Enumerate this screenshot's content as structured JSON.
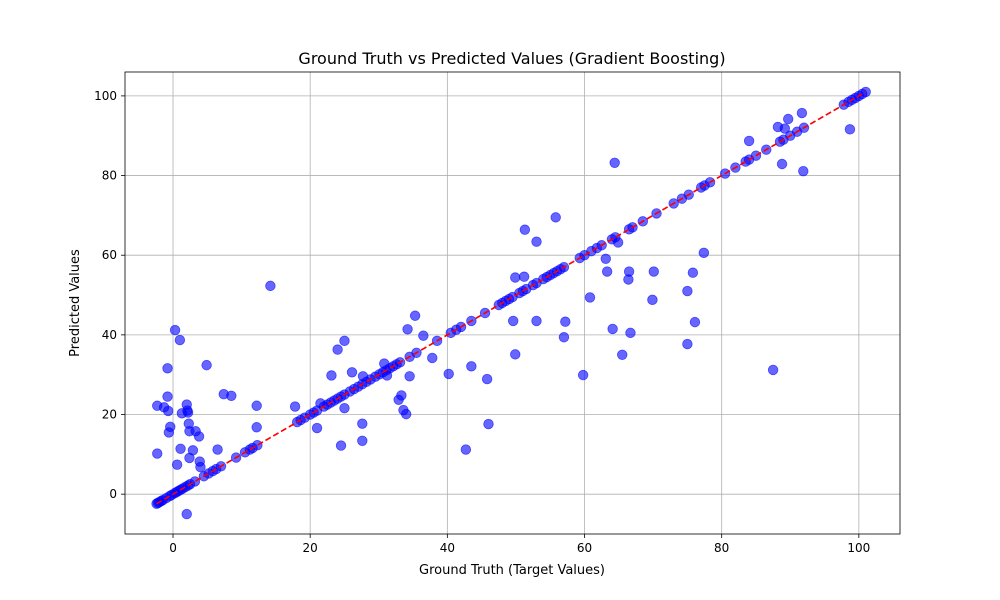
{
  "chart_data": {
    "type": "scatter",
    "title": "Ground Truth vs Predicted Values (Gradient Boosting)",
    "xlabel": "Ground Truth (Target Values)",
    "ylabel": "Predicted Values",
    "xlim": [
      -7,
      106
    ],
    "ylim": [
      -10,
      106
    ],
    "xticks": [
      0,
      20,
      40,
      60,
      80,
      100
    ],
    "yticks": [
      0,
      20,
      40,
      60,
      80,
      100
    ],
    "grid": true,
    "point_color": "#0000ff",
    "line_color": "#ff0000",
    "reference_line": {
      "style": "dashed",
      "x": [
        -2.4,
        101
      ],
      "y": [
        -2.4,
        101
      ]
    },
    "points": [
      [
        -2.4,
        -2.4
      ],
      [
        -2.2,
        -2.2
      ],
      [
        -2,
        -2
      ],
      [
        -1.7,
        -1.7
      ],
      [
        -1.5,
        -1.5
      ],
      [
        -1,
        -1
      ],
      [
        -0.5,
        -0.5
      ],
      [
        -0.2,
        -0.2
      ],
      [
        0.2,
        0.2
      ],
      [
        0.5,
        0.5
      ],
      [
        0.8,
        0.8
      ],
      [
        1.1,
        1.1
      ],
      [
        1.4,
        1.4
      ],
      [
        1.8,
        1.8
      ],
      [
        2.2,
        2.2
      ],
      [
        2.5,
        2.5
      ],
      [
        3.2,
        3.2
      ],
      [
        4.5,
        4.5
      ],
      [
        5.2,
        5.2
      ],
      [
        5.8,
        5.8
      ],
      [
        6.3,
        6.3
      ],
      [
        7,
        7
      ],
      [
        9.2,
        9.2
      ],
      [
        10.5,
        10.5
      ],
      [
        11.2,
        11.2
      ],
      [
        11.6,
        11.6
      ],
      [
        12.3,
        12.3
      ],
      [
        18.1,
        18.1
      ],
      [
        18.6,
        18.6
      ],
      [
        19.2,
        19.2
      ],
      [
        20,
        20
      ],
      [
        20.5,
        20.5
      ],
      [
        21,
        21
      ],
      [
        22,
        22
      ],
      [
        22.5,
        22.5
      ],
      [
        23,
        23
      ],
      [
        23.5,
        23.5
      ],
      [
        24,
        24
      ],
      [
        24.5,
        24.5
      ],
      [
        25,
        25
      ],
      [
        25.8,
        25.8
      ],
      [
        26.4,
        26.4
      ],
      [
        27,
        27
      ],
      [
        27.6,
        27.6
      ],
      [
        28.2,
        28.2
      ],
      [
        28.8,
        28.8
      ],
      [
        29.5,
        29.5
      ],
      [
        30.1,
        30.1
      ],
      [
        30.6,
        30.6
      ],
      [
        31.1,
        31.1
      ],
      [
        31.6,
        31.6
      ],
      [
        32.1,
        32.1
      ],
      [
        32.6,
        32.6
      ],
      [
        33.1,
        33.1
      ],
      [
        34.5,
        34.5
      ],
      [
        35.5,
        35.5
      ],
      [
        38.5,
        38.5
      ],
      [
        40.5,
        40.5
      ],
      [
        41.3,
        41.3
      ],
      [
        42,
        42
      ],
      [
        43.5,
        43.5
      ],
      [
        45.5,
        45.5
      ],
      [
        47.5,
        47.5
      ],
      [
        48,
        48
      ],
      [
        48.5,
        48.5
      ],
      [
        49,
        49
      ],
      [
        49.5,
        49.5
      ],
      [
        50.5,
        50.5
      ],
      [
        51,
        51
      ],
      [
        51.5,
        51.5
      ],
      [
        52.5,
        52.5
      ],
      [
        53,
        53
      ],
      [
        54,
        54
      ],
      [
        54.5,
        54.5
      ],
      [
        55,
        55
      ],
      [
        55.5,
        55.5
      ],
      [
        56,
        56
      ],
      [
        56.5,
        56.5
      ],
      [
        57,
        57
      ],
      [
        59.3,
        59.3
      ],
      [
        60,
        60
      ],
      [
        61,
        61
      ],
      [
        61.8,
        61.8
      ],
      [
        62.5,
        62.5
      ],
      [
        64,
        64
      ],
      [
        64.5,
        64.5
      ],
      [
        66.5,
        66.5
      ],
      [
        67,
        67
      ],
      [
        68.5,
        68.5
      ],
      [
        70.5,
        70.5
      ],
      [
        73,
        73
      ],
      [
        74.2,
        74.2
      ],
      [
        75.2,
        75.2
      ],
      [
        77,
        77
      ],
      [
        77.5,
        77.5
      ],
      [
        78.3,
        78.3
      ],
      [
        80.5,
        80.5
      ],
      [
        82,
        82
      ],
      [
        83.5,
        83.5
      ],
      [
        84,
        84
      ],
      [
        85,
        85
      ],
      [
        86.5,
        86.5
      ],
      [
        88.5,
        88.5
      ],
      [
        89,
        89
      ],
      [
        90,
        90
      ],
      [
        91,
        91
      ],
      [
        92,
        92
      ],
      [
        97.8,
        97.8
      ],
      [
        98.5,
        98.5
      ],
      [
        99,
        99
      ],
      [
        99.5,
        99.5
      ],
      [
        100,
        100
      ],
      [
        100.5,
        100.5
      ],
      [
        101,
        101
      ],
      [
        -2.3,
        22.2
      ],
      [
        -2.3,
        10.2
      ],
      [
        -1.3,
        21.8
      ],
      [
        -0.8,
        31.6
      ],
      [
        -0.8,
        24.5
      ],
      [
        -0.7,
        20.9
      ],
      [
        -0.6,
        15.5
      ],
      [
        -0.4,
        16.9
      ],
      [
        0.3,
        41.2
      ],
      [
        0.6,
        7.4
      ],
      [
        1,
        38.7
      ],
      [
        1.1,
        11.4
      ],
      [
        1.3,
        20.3
      ],
      [
        2,
        22.5
      ],
      [
        2.1,
        21
      ],
      [
        2.2,
        20.5
      ],
      [
        2.3,
        17.7
      ],
      [
        2.4,
        15.8
      ],
      [
        2.4,
        9.1
      ],
      [
        2,
        -5
      ],
      [
        2.9,
        11
      ],
      [
        3.3,
        15.8
      ],
      [
        3.8,
        14.5
      ],
      [
        3.9,
        8.2
      ],
      [
        4,
        6.8
      ],
      [
        4.9,
        32.4
      ],
      [
        6.5,
        11.2
      ],
      [
        7.4,
        25.1
      ],
      [
        8.5,
        24.7
      ],
      [
        12.2,
        22.2
      ],
      [
        12.2,
        16.8
      ],
      [
        14.2,
        52.3
      ],
      [
        17.8,
        22
      ],
      [
        21,
        16.6
      ],
      [
        21.5,
        22.8
      ],
      [
        23.1,
        29.8
      ],
      [
        24,
        36.3
      ],
      [
        24.5,
        12.2
      ],
      [
        25,
        38.5
      ],
      [
        25,
        21.6
      ],
      [
        26.1,
        30.6
      ],
      [
        27.6,
        13.4
      ],
      [
        27.6,
        17.7
      ],
      [
        27.7,
        29.6
      ],
      [
        30.8,
        32.8
      ],
      [
        31.2,
        29.8
      ],
      [
        32.9,
        23.7
      ],
      [
        33.3,
        24.8
      ],
      [
        33.6,
        21.1
      ],
      [
        34,
        20.1
      ],
      [
        34.2,
        41.4
      ],
      [
        34.5,
        29.6
      ],
      [
        35.3,
        44.8
      ],
      [
        36.5,
        39.8
      ],
      [
        37.8,
        34.2
      ],
      [
        40.2,
        30.2
      ],
      [
        42.7,
        11.2
      ],
      [
        43.5,
        32.1
      ],
      [
        45.8,
        28.9
      ],
      [
        46,
        17.6
      ],
      [
        49.6,
        43.5
      ],
      [
        49.9,
        35.1
      ],
      [
        49.9,
        54.4
      ],
      [
        51.2,
        54.6
      ],
      [
        51.3,
        66.4
      ],
      [
        53,
        63.4
      ],
      [
        53,
        43.5
      ],
      [
        55.8,
        69.5
      ],
      [
        57,
        39.4
      ],
      [
        57.2,
        43.3
      ],
      [
        59.8,
        29.9
      ],
      [
        60.8,
        49.4
      ],
      [
        63.1,
        59.1
      ],
      [
        63.3,
        55.9
      ],
      [
        64.1,
        41.5
      ],
      [
        64.4,
        83.2
      ],
      [
        64.9,
        63.2
      ],
      [
        65.5,
        35
      ],
      [
        66.4,
        53.9
      ],
      [
        66.5,
        55.9
      ],
      [
        66.7,
        40.5
      ],
      [
        69.9,
        48.8
      ],
      [
        70.1,
        55.9
      ],
      [
        75,
        51
      ],
      [
        75,
        37.7
      ],
      [
        75.8,
        55.6
      ],
      [
        76.1,
        43.2
      ],
      [
        77.4,
        60.6
      ],
      [
        84,
        88.7
      ],
      [
        87.5,
        31.2
      ],
      [
        88.2,
        92.2
      ],
      [
        88.8,
        82.9
      ],
      [
        89.2,
        91.8
      ],
      [
        89.7,
        94.2
      ],
      [
        91.7,
        95.7
      ],
      [
        91.9,
        81.1
      ],
      [
        98.7,
        91.6
      ]
    ]
  }
}
